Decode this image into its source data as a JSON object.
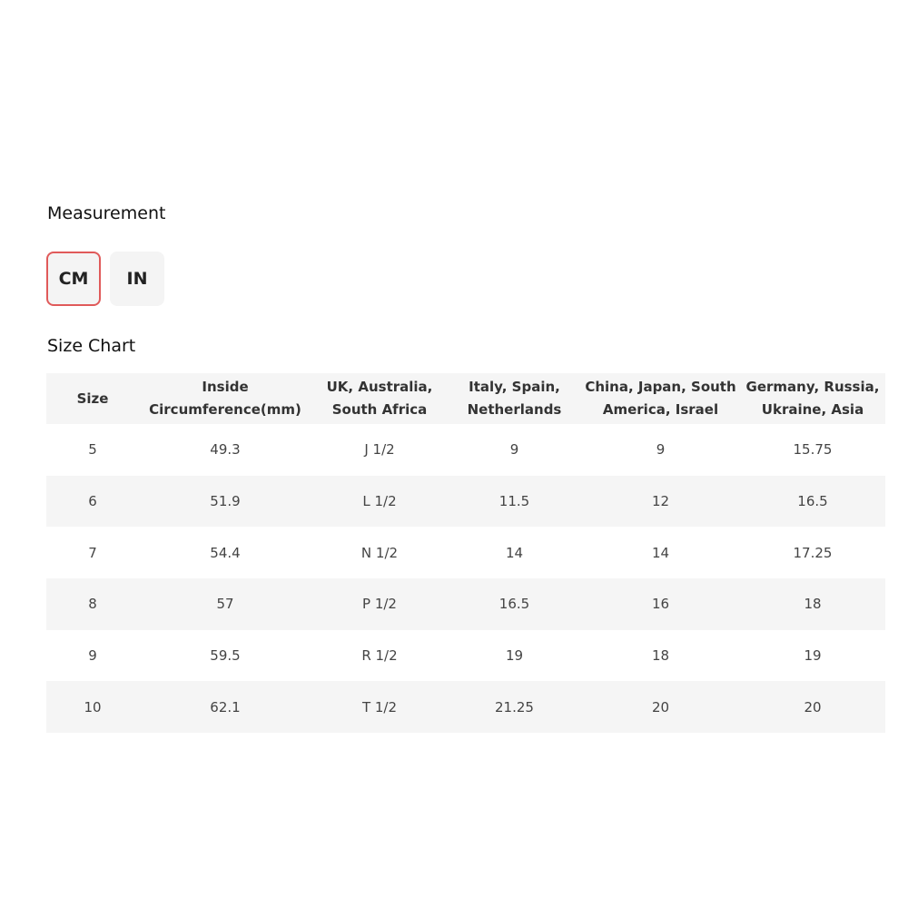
{
  "measurement": {
    "title": "Measurement",
    "options": [
      "CM",
      "IN"
    ],
    "selected": "CM",
    "accent_color": "#e05a5a"
  },
  "size_chart": {
    "title": "Size Chart",
    "headers": [
      "Size",
      "Inside Circumference(mm)",
      "UK, Australia, South Africa",
      "Italy, Spain, Netherlands",
      "China, Japan, South America, Israel",
      "Germany, Russia, Ukraine, Asia"
    ],
    "rows": [
      [
        "5",
        "49.3",
        "J 1/2",
        "9",
        "9",
        "15.75"
      ],
      [
        "6",
        "51.9",
        "L 1/2",
        "11.5",
        "12",
        "16.5"
      ],
      [
        "7",
        "54.4",
        "N 1/2",
        "14",
        "14",
        "17.25"
      ],
      [
        "8",
        "57",
        "P 1/2",
        "16.5",
        "16",
        "18"
      ],
      [
        "9",
        "59.5",
        "R 1/2",
        "19",
        "18",
        "19"
      ],
      [
        "10",
        "62.1",
        "T 1/2",
        "21.25",
        "20",
        "20"
      ]
    ]
  }
}
